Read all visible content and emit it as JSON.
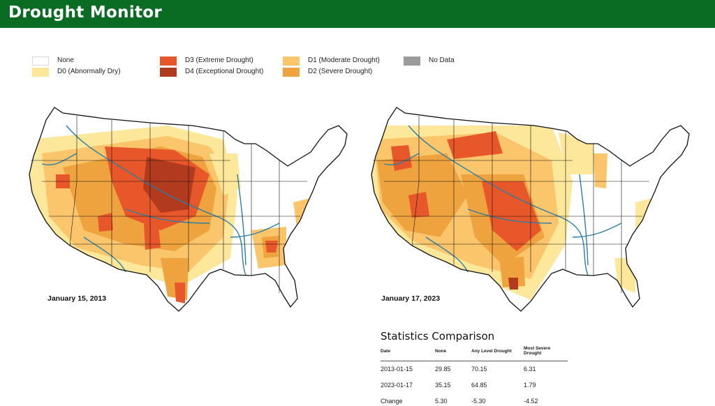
{
  "header": {
    "title": "Drought Monitor"
  },
  "legend": [
    {
      "id": "none",
      "label": "None",
      "color": "#ffffff"
    },
    {
      "id": "d0",
      "label": "D0 (Abnormally Dry)",
      "color": "#fde79a"
    },
    {
      "id": "d3",
      "label": "D3 (Extreme Drought)",
      "color": "#e8572a"
    },
    {
      "id": "d4",
      "label": "D4 (Exceptional Drought)",
      "color": "#b23a1e"
    },
    {
      "id": "d1",
      "label": "D1 (Moderate Drought)",
      "color": "#fbc56c"
    },
    {
      "id": "d2",
      "label": "D2 (Severe Drought)",
      "color": "#eea33f"
    },
    {
      "id": "nodata",
      "label": "No Data",
      "color": "#9b9b9b"
    }
  ],
  "maps": [
    {
      "id": "map-2013",
      "date": "January 15, 2013"
    },
    {
      "id": "map-2023",
      "date": "January 17, 2023"
    }
  ],
  "stats": {
    "title": "Statistics Comparison",
    "headers": [
      "Date",
      "None",
      "Any Level Drought",
      "Most Severe Drought"
    ],
    "rows": [
      [
        "2013-01-15",
        "29.85",
        "70.15",
        "6.31"
      ],
      [
        "2023-01-17",
        "35.15",
        "64.85",
        "1.79"
      ],
      [
        "Change",
        "5.30",
        "-5.30",
        "-4.52"
      ]
    ]
  },
  "colors": {
    "header_bg": "#0a6b23",
    "water": "#2a7fa6",
    "border": "#111111"
  }
}
